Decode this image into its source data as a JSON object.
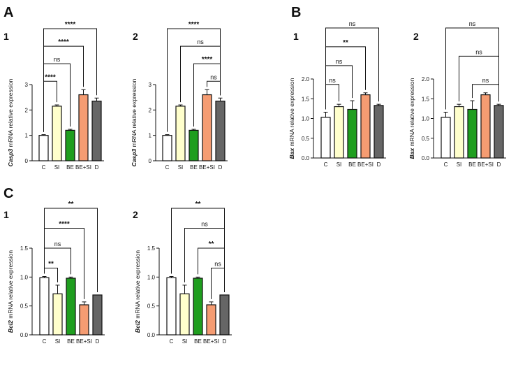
{
  "panels": [
    {
      "letter": "A"
    },
    {
      "letter": "B"
    },
    {
      "letter": "C"
    }
  ],
  "colors": {
    "C": "#ffffff",
    "SI": "#ffffcc",
    "BE": "#1f9e1f",
    "BE+SI": "#f59c72",
    "D": "#666666",
    "stroke": "#111111"
  },
  "chart_data": [
    {
      "id": "A1",
      "type": "bar",
      "panel": "A",
      "number": "1",
      "gene": "Casp3",
      "ylabel_rest": " mRNA relative expression",
      "categories": [
        "C",
        "SI",
        "BE",
        "BE+SI",
        "D"
      ],
      "values": [
        1.0,
        2.15,
        1.2,
        2.6,
        2.35
      ],
      "errors": [
        0.03,
        0.05,
        0.04,
        0.2,
        0.12
      ],
      "ylim": [
        0,
        3
      ],
      "yticks": [
        "0",
        "1",
        "2",
        "3"
      ],
      "comparisons": [
        {
          "from": "C",
          "to": "SI",
          "label": "****"
        },
        {
          "from": "C",
          "to": "BE",
          "label": "ns"
        },
        {
          "from": "C",
          "to": "BE+SI",
          "label": "****"
        },
        {
          "from": "C",
          "to": "D",
          "label": "****"
        }
      ]
    },
    {
      "id": "A2",
      "type": "bar",
      "panel": "A",
      "number": "2",
      "gene": "Casp3",
      "ylabel_rest": " mRNA relative expression",
      "categories": [
        "C",
        "SI",
        "BE",
        "BE+SI",
        "D"
      ],
      "values": [
        1.0,
        2.15,
        1.2,
        2.6,
        2.35
      ],
      "errors": [
        0.03,
        0.05,
        0.04,
        0.2,
        0.12
      ],
      "ylim": [
        0,
        3
      ],
      "yticks": [
        "0",
        "1",
        "2",
        "3"
      ],
      "comparisons": [
        {
          "from": "BE+SI",
          "to": "D",
          "label": "ns"
        },
        {
          "from": "BE",
          "to": "D",
          "label": "****"
        },
        {
          "from": "SI",
          "to": "D",
          "label": "ns"
        },
        {
          "from": "C",
          "to": "D",
          "label": "****"
        }
      ]
    },
    {
      "id": "B1",
      "type": "bar",
      "panel": "B",
      "number": "1",
      "gene": "Bax",
      "ylabel_rest": " mRNA relative expression",
      "categories": [
        "C",
        "SI",
        "BE",
        "BE+SI",
        "D"
      ],
      "values": [
        1.03,
        1.3,
        1.23,
        1.6,
        1.33
      ],
      "errors": [
        0.13,
        0.06,
        0.22,
        0.05,
        0.03
      ],
      "ylim": [
        0,
        2.0
      ],
      "yticks": [
        "0.0",
        "0.5",
        "1.0",
        "1.5",
        "2.0"
      ],
      "comparisons": [
        {
          "from": "C",
          "to": "SI",
          "label": "ns"
        },
        {
          "from": "C",
          "to": "BE",
          "label": "ns"
        },
        {
          "from": "C",
          "to": "BE+SI",
          "label": "**"
        },
        {
          "from": "C",
          "to": "D",
          "label": "ns"
        }
      ]
    },
    {
      "id": "B2",
      "type": "bar",
      "panel": "B",
      "number": "2",
      "gene": "Bax",
      "ylabel_rest": " mRNA relative expression",
      "categories": [
        "C",
        "SI",
        "BE",
        "BE+SI",
        "D"
      ],
      "values": [
        1.03,
        1.3,
        1.23,
        1.6,
        1.33
      ],
      "errors": [
        0.13,
        0.06,
        0.22,
        0.05,
        0.03
      ],
      "ylim": [
        0,
        2.0
      ],
      "yticks": [
        "0.0",
        "0.5",
        "1.0",
        "1.5",
        "2.0"
      ],
      "comparisons": [
        {
          "from": "BE",
          "to": "D",
          "label": "ns"
        },
        {
          "from": "SI",
          "to": "D",
          "label": "ns"
        },
        {
          "from": "C",
          "to": "D",
          "label": "ns"
        }
      ]
    },
    {
      "id": "C1",
      "type": "bar",
      "panel": "C",
      "number": "1",
      "gene": "Bcl2",
      "ylabel_rest": " mRNA relative expression",
      "categories": [
        "C",
        "SI",
        "BE",
        "BE+SI",
        "D"
      ],
      "values": [
        0.99,
        0.71,
        0.98,
        0.52,
        0.69
      ],
      "errors": [
        0.02,
        0.15,
        0.02,
        0.05,
        0.0
      ],
      "ylim": [
        0,
        1.5
      ],
      "yticks": [
        "0.0",
        "0.5",
        "1.0",
        "1.5"
      ],
      "comparisons": [
        {
          "from": "C",
          "to": "SI",
          "label": "**"
        },
        {
          "from": "C",
          "to": "BE",
          "label": "ns"
        },
        {
          "from": "C",
          "to": "BE+SI",
          "label": "****"
        },
        {
          "from": "C",
          "to": "D",
          "label": "**"
        }
      ]
    },
    {
      "id": "C2",
      "type": "bar",
      "panel": "C",
      "number": "2",
      "gene": "Bcl2",
      "ylabel_rest": " mRNA relative expression",
      "categories": [
        "C",
        "SI",
        "BE",
        "BE+SI",
        "D"
      ],
      "values": [
        0.99,
        0.71,
        0.98,
        0.52,
        0.69
      ],
      "errors": [
        0.02,
        0.15,
        0.02,
        0.05,
        0.0
      ],
      "ylim": [
        0,
        1.5
      ],
      "yticks": [
        "0.0",
        "0.5",
        "1.0",
        "1.5"
      ],
      "comparisons": [
        {
          "from": "BE+SI",
          "to": "D",
          "label": "ns"
        },
        {
          "from": "BE",
          "to": "D",
          "label": "**"
        },
        {
          "from": "SI",
          "to": "D",
          "label": "ns"
        },
        {
          "from": "C",
          "to": "D",
          "label": "**"
        }
      ]
    }
  ]
}
